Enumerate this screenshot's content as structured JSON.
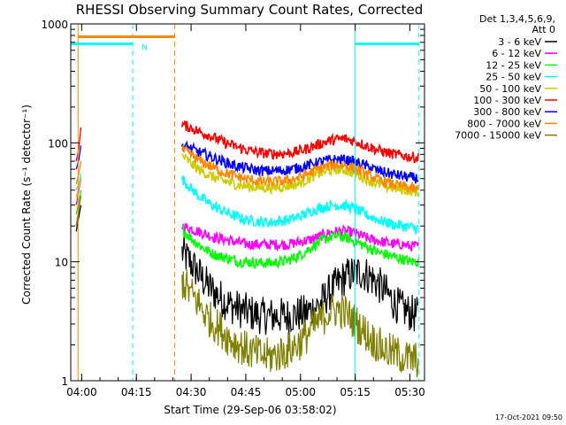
{
  "chart_data": {
    "type": "line",
    "title": "RHESSI Observing Summary Count Rates, Corrected",
    "xlabel": "Start Time (29-Sep-06 03:58:02)",
    "ylabel": "Corrected Count Rate (s⁻¹ detector⁻¹)",
    "yscale": "log",
    "ylim": [
      1,
      1000
    ],
    "xlim_minutes": [
      -1.0,
      96.0
    ],
    "xticks": [
      {
        "minutes": 2,
        "label": "04:00"
      },
      {
        "minutes": 17,
        "label": "04:15"
      },
      {
        "minutes": 32,
        "label": "04:30"
      },
      {
        "minutes": 47,
        "label": "04:45"
      },
      {
        "minutes": 62,
        "label": "05:00"
      },
      {
        "minutes": 77,
        "label": "05:15"
      },
      {
        "minutes": 92,
        "label": "05:30"
      }
    ],
    "yticks": [
      {
        "value": 1,
        "label": "1"
      },
      {
        "value": 10,
        "label": "10"
      },
      {
        "value": 100,
        "label": "100"
      },
      {
        "value": 1000,
        "label": "1000"
      }
    ],
    "legend_header": [
      "Det 1,3,4,5,6,9,",
      "Att 0"
    ],
    "legend_position": "right",
    "timestamp": "17-Oct-2021 09:50",
    "series": [
      {
        "name": "3 - 6 keV",
        "color": "#000000",
        "start_min": 29.5,
        "end_min": 94.5,
        "pre": {
          "t": [
            0.5,
            1.2,
            1.8
          ],
          "v": [
            18,
            24,
            30
          ]
        },
        "values": [
          12,
          10,
          8,
          6.5,
          5.5,
          4.8,
          4.3,
          4,
          3.8,
          3.6,
          3.5,
          3.5,
          3.5,
          3.5,
          3.6,
          3.7,
          4,
          4.5,
          5.5,
          6.5,
          7.5,
          8,
          8.2,
          7.5,
          6.5,
          5.5,
          4.5,
          4,
          3.7,
          3.5
        ]
      },
      {
        "name": "6 - 12 keV",
        "color": "#ff00ff",
        "start_min": 29.5,
        "end_min": 94.5,
        "pre": {
          "t": [
            0.5,
            1.2,
            1.8
          ],
          "v": [
            30,
            40,
            50
          ]
        },
        "values": [
          20,
          19,
          18,
          17,
          16,
          15.5,
          15,
          14.5,
          14,
          14,
          14,
          14,
          14,
          14,
          14.5,
          15,
          15.5,
          16.5,
          17.5,
          18,
          18,
          17.5,
          16.5,
          15.5,
          15,
          14.5,
          14,
          14,
          13.5,
          13.5
        ]
      },
      {
        "name": "12 - 25 keV",
        "color": "#00ff00",
        "start_min": 29.5,
        "end_min": 94.5,
        "pre": {
          "t": [
            0.5,
            1.2,
            1.8
          ],
          "v": [
            25,
            32,
            40
          ]
        },
        "values": [
          19,
          16,
          14,
          12.5,
          11.5,
          11,
          10.5,
          10,
          10,
          9.8,
          9.8,
          9.8,
          10,
          10.3,
          11,
          12,
          13.5,
          15,
          16,
          16.5,
          16,
          15,
          14,
          13,
          12,
          11.5,
          11,
          10.5,
          10,
          10
        ]
      },
      {
        "name": "25 - 50 keV",
        "color": "#00ffff",
        "start_min": 29.5,
        "end_min": 94.5,
        "pre": {
          "t": [
            0.5,
            1.2,
            1.8
          ],
          "v": [
            40,
            45,
            55
          ]
        },
        "values": [
          50,
          42,
          36,
          32,
          29,
          27,
          25,
          23.5,
          22.5,
          22,
          21.5,
          21.5,
          22,
          22.5,
          23.5,
          25,
          27,
          28.5,
          29.5,
          30,
          29.5,
          28,
          26,
          24,
          22.5,
          21.5,
          20.5,
          20,
          19.5,
          19
        ]
      },
      {
        "name": "50 - 100 keV",
        "color": "#cccc00",
        "start_min": 29.5,
        "end_min": 94.5,
        "pre": {
          "t": [
            0.5,
            1.2,
            1.8
          ],
          "v": [
            35,
            42,
            52
          ]
        },
        "values": [
          78,
          68,
          60,
          55,
          51,
          48,
          46,
          44,
          43,
          42.5,
          42,
          42,
          42.5,
          43.5,
          45,
          48,
          52,
          56,
          58.5,
          60,
          59,
          56,
          52,
          48,
          45,
          43,
          41.5,
          40.5,
          39.5,
          38.5
        ]
      },
      {
        "name": "100 - 300 keV",
        "color": "#ff0000",
        "start_min": 29.5,
        "end_min": 94.5,
        "pre": {
          "t": [
            0.5,
            1.2,
            1.8
          ],
          "v": [
            70,
            90,
            135
          ]
        },
        "values": [
          142,
          135,
          125,
          118,
          110,
          102,
          96,
          91,
          87,
          84,
          82,
          81,
          81,
          82,
          84,
          88,
          93,
          99,
          104,
          107,
          108,
          104,
          98,
          92,
          87,
          83,
          80,
          78,
          76,
          75
        ]
      },
      {
        "name": "300 - 800 keV",
        "color": "#0000ff",
        "start_min": 29.5,
        "end_min": 94.5,
        "pre": {
          "t": [
            0.5,
            1.2,
            1.8
          ],
          "v": [
            60,
            72,
            95
          ]
        },
        "values": [
          95,
          90,
          84,
          79,
          74,
          70,
          66,
          63,
          61,
          59,
          58,
          58,
          58.5,
          59.5,
          61,
          63.5,
          66.5,
          69.5,
          71.5,
          72.5,
          72,
          69.5,
          66,
          62,
          58.5,
          56,
          54,
          52.5,
          51,
          50
        ]
      },
      {
        "name": "800 - 7000 keV",
        "color": "#ff8800",
        "start_min": 29.5,
        "end_min": 94.5,
        "pre": {
          "t": [
            0.5,
            1.2,
            1.8
          ],
          "v": [
            45,
            55,
            70
          ]
        },
        "values": [
          88,
          80,
          72,
          66,
          61,
          57,
          54,
          51.5,
          49.5,
          48,
          47,
          47,
          47.5,
          48.5,
          50.5,
          53.5,
          57.5,
          61.5,
          64,
          65.5,
          64.5,
          61.5,
          57,
          52.5,
          49,
          46.5,
          44.5,
          43,
          41.5,
          40
        ]
      },
      {
        "name": "7000 - 15000 keV",
        "color": "#808000",
        "start_min": 29.5,
        "end_min": 94.5,
        "pre": {
          "t": [
            0.5,
            1.2,
            1.8
          ],
          "v": [
            20,
            28,
            36
          ]
        },
        "values": [
          7,
          5.5,
          4.5,
          3.5,
          3,
          2.6,
          2.2,
          2,
          1.8,
          1.7,
          1.6,
          1.6,
          1.7,
          1.8,
          2,
          2.3,
          2.8,
          3.3,
          3.8,
          4,
          3.7,
          3.2,
          2.7,
          2.3,
          2,
          1.8,
          1.7,
          1.6,
          1.5,
          1.5
        ]
      }
    ],
    "flag_bars": [
      {
        "label": "N",
        "color": "#00ffff",
        "start_min": -1.0,
        "end_min": 16.0,
        "value": 680
      },
      {
        "label": "",
        "color": "#ff8800",
        "start_min": 1.0,
        "end_min": 27.5,
        "value": 780
      },
      {
        "label": "",
        "color": "#00ffff",
        "start_min": 77.0,
        "end_min": 94.5,
        "value": 680
      }
    ],
    "markers": [
      {
        "color": "#ff8800",
        "style": "solid",
        "minutes": 1.0
      },
      {
        "color": "#00ffff",
        "style": "dashed",
        "minutes": 16.0
      },
      {
        "color": "#ff8800",
        "style": "dashed",
        "minutes": 27.5
      },
      {
        "color": "#00ffff",
        "style": "solid",
        "minutes": 77.0
      },
      {
        "color": "#00ffff",
        "style": "dashed",
        "minutes": 94.5
      }
    ]
  }
}
